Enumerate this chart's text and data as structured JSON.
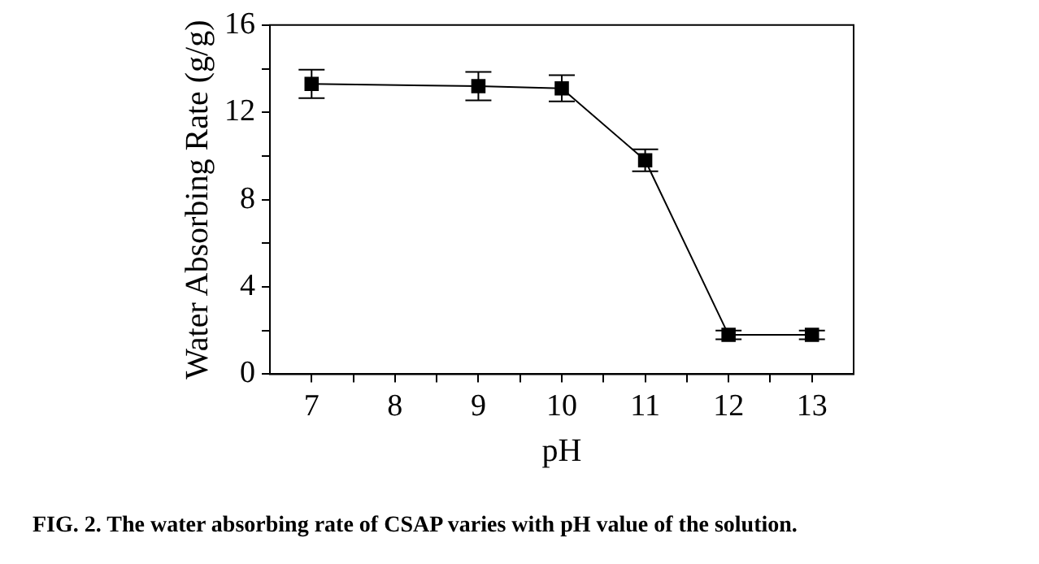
{
  "chart_data": {
    "type": "line",
    "xlabel": "pH",
    "ylabel": "Water Absorbing Rate (g/g)",
    "x": [
      7,
      9,
      10,
      11,
      12,
      13
    ],
    "series": [
      {
        "color": "#000000",
        "values": [
          13.3,
          13.2,
          13.1,
          9.8,
          1.8,
          1.8
        ],
        "errors": [
          0.65,
          0.65,
          0.6,
          0.5,
          0.2,
          0.2
        ]
      }
    ],
    "xlim": [
      6.5,
      13.5
    ],
    "xticks": [
      7,
      {
        "value": 7.5,
        "label": null
      },
      8,
      {
        "value": 8.5,
        "label": null
      },
      9,
      {
        "value": 9.5,
        "label": null
      },
      10,
      {
        "value": 10.5,
        "label": null
      },
      11,
      {
        "value": 11.5,
        "label": null
      },
      12,
      {
        "value": 12.5,
        "label": null
      },
      13
    ],
    "ylim": [
      0,
      16
    ],
    "yticks": [
      0,
      {
        "value": 2,
        "label": null
      },
      4,
      {
        "value": 6,
        "label": null
      },
      8,
      {
        "value": 10,
        "label": null
      },
      12,
      {
        "value": 14,
        "label": null
      },
      16
    ],
    "grid": false,
    "legend": false,
    "marker": "square",
    "line_style": "solid",
    "annotations": [
      "FIG. 2. The water absorbing rate of CSAP varies with pH value of the solution."
    ]
  }
}
